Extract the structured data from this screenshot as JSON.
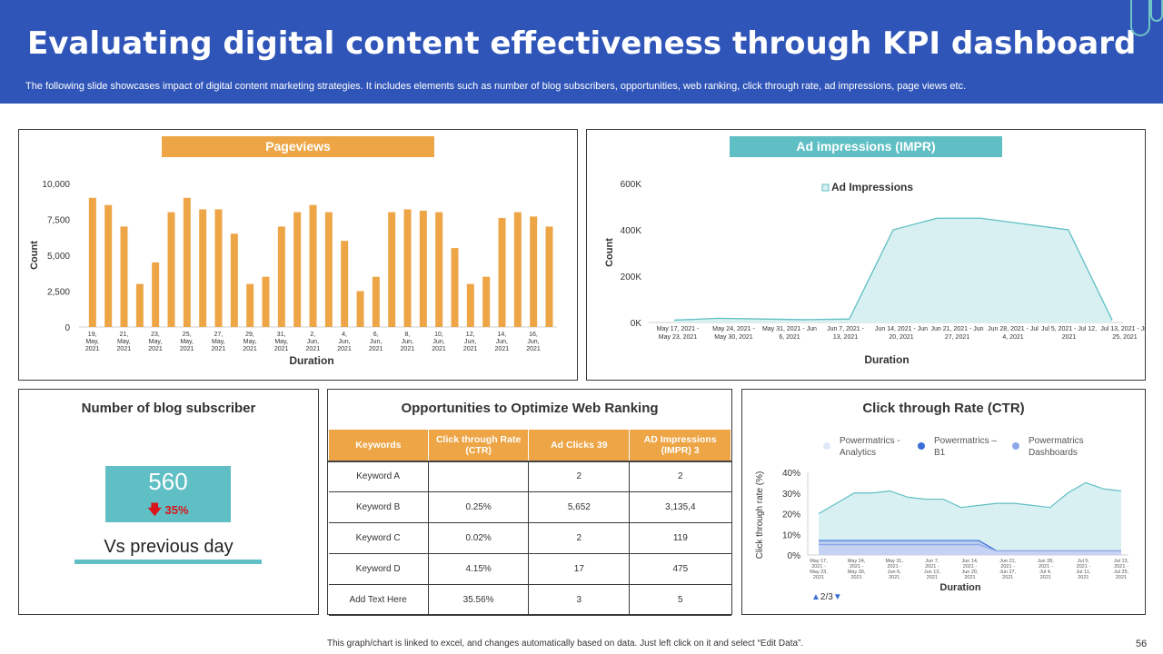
{
  "header": {
    "title": "Evaluating digital content effectiveness through KPI dashboard",
    "subtitle": "The following slide showcases impact of digital content marketing strategies. It includes elements such as number of blog subscribers, opportunities, web ranking, click through rate, ad impressions, page views etc."
  },
  "colors": {
    "header_bg": "#2f55b8",
    "orange": "#eda546",
    "teal": "#5fbfc4",
    "red": "#d9141a"
  },
  "pageviews": {
    "title": "Pageviews",
    "chart_data": {
      "type": "bar",
      "title": "Pageviews",
      "xlabel": "Duration",
      "ylabel": "Count",
      "ylim": [
        0,
        10000
      ],
      "yticks": [
        "10,000",
        "7,500",
        "5,000",
        "2,500",
        "0"
      ],
      "tick_labels": [
        [
          "19,",
          "May,",
          "2021"
        ],
        [
          "21,",
          "May,",
          "2021"
        ],
        [
          "23,",
          "May,",
          "2021"
        ],
        [
          "25,",
          "May,",
          "2021"
        ],
        [
          "27,",
          "May,",
          "2021"
        ],
        [
          "29,",
          "May,",
          "2021"
        ],
        [
          "31,",
          "May,",
          "2021"
        ],
        [
          "2,",
          "Jun,",
          "2021"
        ],
        [
          "4,",
          "Jun,",
          "2021"
        ],
        [
          "6,",
          "Jun,",
          "2021"
        ],
        [
          "8,",
          "Jun,",
          "2021"
        ],
        [
          "10,",
          "Jun,",
          "2021"
        ],
        [
          "12,",
          "Jun,",
          "2021"
        ],
        [
          "14,",
          "Jun,",
          "2021"
        ],
        [
          "16,",
          "Jun,",
          "2021"
        ]
      ],
      "values": [
        9000,
        8500,
        7000,
        3000,
        4500,
        8000,
        9000,
        8200,
        8200,
        6500,
        3000,
        3500,
        7000,
        8000,
        8500,
        8000,
        6000,
        2500,
        3500,
        8000,
        8200,
        8100,
        8000,
        5500,
        3000,
        3500,
        7600,
        8000,
        7700,
        7000
      ]
    }
  },
  "ad_impressions": {
    "title": "Ad impressions (IMPR)",
    "chart_data": {
      "type": "area",
      "xlabel": "Duration",
      "ylabel": "Count",
      "ylim": [
        0,
        600000
      ],
      "yticks": [
        "600K",
        "400K",
        "200K",
        "0K"
      ],
      "legend": "Ad Impressions",
      "categories": [
        [
          "May 17, 2021 -",
          "May 23, 2021"
        ],
        [
          "May 24, 2021 -",
          "May 30, 2021"
        ],
        [
          "May 31, 2021 - Jun",
          "6, 2021"
        ],
        [
          "Jun 7, 2021 -",
          "13, 2021"
        ],
        [
          "Jun 14, 2021 - Jun",
          "20, 2021"
        ],
        [
          "Jun 21, 2021 - Jun",
          "27, 2021"
        ],
        [
          "Jun 28, 2021 - Jul",
          "4, 2021"
        ],
        [
          "Jul 5, 2021 - Jul 12,",
          "2021"
        ],
        [
          "Jul 13, 2021 - Jul",
          "25, 2021"
        ]
      ],
      "x": [
        0,
        1,
        2,
        3,
        4,
        5,
        6,
        7,
        8,
        9,
        10
      ],
      "values": [
        10000,
        18000,
        15000,
        12000,
        15000,
        400000,
        450000,
        450000,
        425000,
        400000,
        10000
      ]
    }
  },
  "blog": {
    "title": "Number of blog subscriber",
    "value": "560",
    "change": "35%",
    "caption": "Vs previous day"
  },
  "opportunities": {
    "title": "Opportunities to Optimize Web Ranking",
    "columns": [
      "Keywords",
      "Click through Rate (CTR)",
      "Ad Clicks 39",
      "AD Impressions (IMPR) 3"
    ],
    "rows": [
      [
        "Keyword A",
        "",
        "2",
        "2"
      ],
      [
        "Keyword B",
        "0.25%",
        "5,652",
        "3,135,4"
      ],
      [
        "Keyword C",
        "0.02%",
        "2",
        "119"
      ],
      [
        "Keyword D",
        "4.15%",
        "17",
        "475"
      ],
      [
        "Add Text Here",
        "35.56%",
        "3",
        "5"
      ]
    ]
  },
  "ctr": {
    "title": "Click through Rate (CTR)",
    "pager": "2/3",
    "chart_data": {
      "type": "area",
      "xlabel": "Duration",
      "ylabel": "Click through rate (%)",
      "ylim": [
        0,
        40
      ],
      "yticks": [
        "40%",
        "30%",
        "20%",
        "10%",
        "0%"
      ],
      "categories": [
        [
          "May 17,",
          "2021 -",
          "May 23,",
          "2021"
        ],
        [
          "May 24,",
          "2021 -",
          "May 30,",
          "2021"
        ],
        [
          "May 31,",
          "2021 -",
          "Jun 6,",
          "2021"
        ],
        [
          "Jun 7,",
          "2021 -",
          "Jun 13,",
          "2021"
        ],
        [
          "Jun 14,",
          "2021 -",
          "Jun 20,",
          "2021"
        ],
        [
          "Jun 21,",
          "2021 -",
          "Jun 27,",
          "2021"
        ],
        [
          "Jun 28,",
          "2021 -",
          "Jul 4,",
          "2021"
        ],
        [
          "Jul 5,",
          "2021 -",
          "Jul 11,",
          "2021"
        ],
        [
          "Jul 13,",
          "2021 -",
          "Jul 25,",
          "2021"
        ]
      ],
      "x": [
        0,
        1,
        2,
        3,
        4,
        5,
        6,
        7,
        8,
        9,
        10,
        11,
        12,
        13,
        14,
        15,
        16,
        17
      ],
      "series": [
        {
          "name": "Powermatrics - Analytics",
          "color": "#5fbfc4",
          "values": [
            20,
            25,
            30,
            30,
            31,
            28,
            27,
            27,
            23,
            24,
            25,
            25,
            24,
            23,
            30,
            35,
            32,
            31
          ]
        },
        {
          "name": "Powermatrics – B1",
          "color": "#3a6fd8",
          "values": [
            7,
            7,
            7,
            7,
            7,
            7,
            7,
            7,
            7,
            7,
            2,
            2,
            2,
            2,
            2,
            2,
            2,
            2
          ]
        },
        {
          "name": "Powermatrics Dashboards",
          "color": "#8fa7ea",
          "values": [
            5,
            5,
            5,
            5,
            5,
            5,
            5,
            5,
            5,
            5,
            2,
            2,
            2,
            2,
            2,
            2,
            2,
            2
          ]
        }
      ]
    }
  },
  "footer": {
    "note": "This graph/chart is linked to excel, and changes automatically based on data. Just left click on it and select “Edit Data”.",
    "page": "56"
  }
}
